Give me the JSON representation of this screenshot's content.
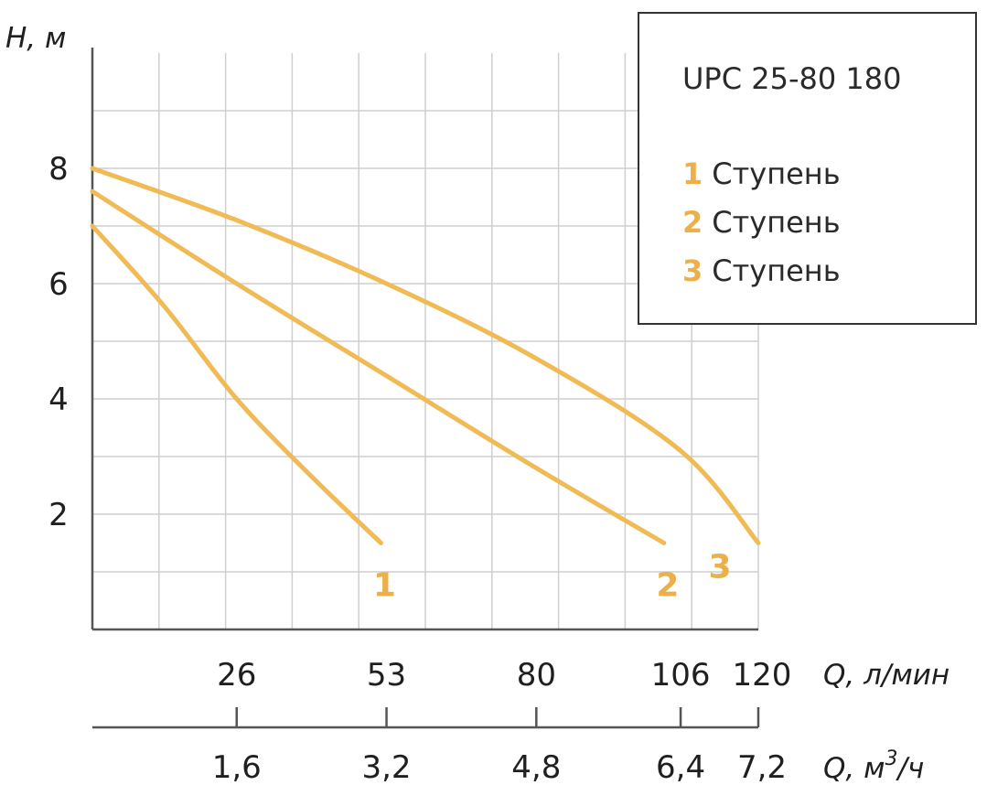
{
  "chart_data": {
    "type": "line",
    "title": "UPC 25-80 180",
    "ylabel": "H, м",
    "xlabel": "Q, л/мин",
    "x2label": "Q, м³/ч",
    "x2label_base": "Q, м",
    "x2label_sup": "3",
    "x2label_tail": "/ч",
    "ylim": [
      0,
      10
    ],
    "xlim": [
      0,
      120
    ],
    "yticks": [
      "2",
      "4",
      "6",
      "8"
    ],
    "ytick_values": [
      2,
      4,
      6,
      8
    ],
    "xticks": [
      "26",
      "53",
      "80",
      "106",
      "120"
    ],
    "xtick_values": [
      26,
      53,
      80,
      106,
      120
    ],
    "x2ticks": [
      "1,6",
      "3,2",
      "4,8",
      "6,4",
      "7,2"
    ],
    "x2tick_values": [
      26,
      53,
      80,
      106,
      120
    ],
    "grid": true,
    "legend_position": "top-right",
    "series": [
      {
        "label": "1",
        "legend": "Ступень",
        "x": [
          0,
          13,
          26,
          39,
          52
        ],
        "y": [
          7.0,
          5.6,
          4.0,
          2.7,
          1.5
        ]
      },
      {
        "label": "2",
        "legend": "Ступень",
        "x": [
          0,
          26,
          53,
          80,
          103
        ],
        "y": [
          7.6,
          6.0,
          4.4,
          2.8,
          1.5
        ]
      },
      {
        "label": "3",
        "legend": "Ступень",
        "x": [
          0,
          26,
          53,
          80,
          106,
          120
        ],
        "y": [
          8.0,
          7.1,
          6.0,
          4.7,
          3.1,
          1.5
        ]
      }
    ],
    "color": "#f0bb55",
    "label_color": "#ecb04a"
  }
}
